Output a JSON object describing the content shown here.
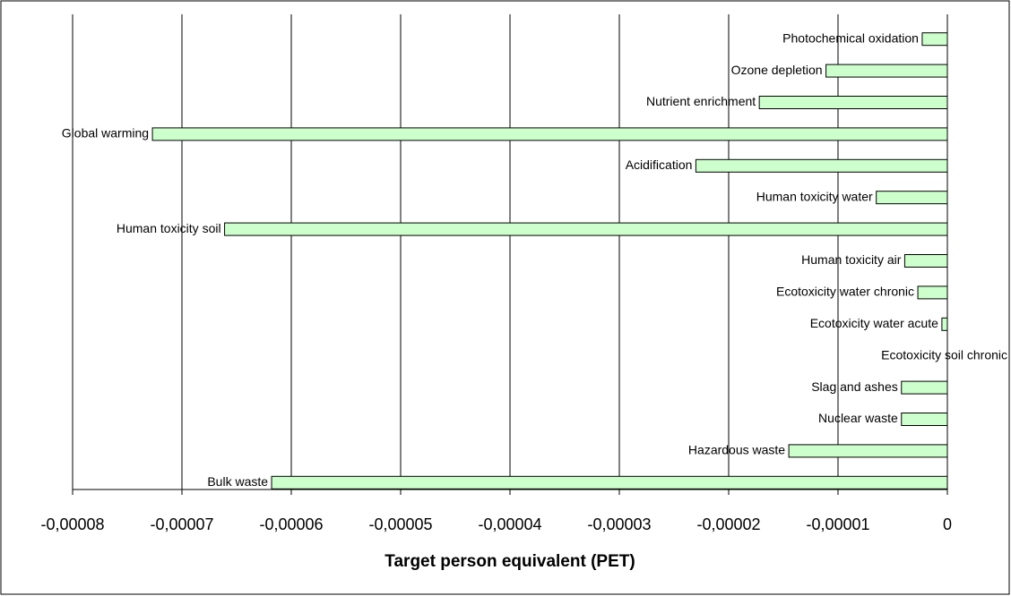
{
  "chart_data": {
    "type": "barh",
    "xlabel": "Target person equivalent (PET)",
    "categories": [
      "Photochemical oxidation",
      "Ozone depletion",
      "Nutrient enrichment",
      "Global warming",
      "Acidification",
      "Human toxicity water",
      "Human toxicity soil",
      "Human toxicity air",
      "Ecotoxicity water chronic",
      "Ecotoxicity water acute",
      "Ecotoxicity soil chronic",
      "Slag and ashes",
      "Nuclear waste",
      "Hazardous waste",
      "Bulk waste"
    ],
    "values": [
      -2.3e-06,
      -1.11e-05,
      -1.72e-05,
      -7.27e-05,
      -2.3e-05,
      -6.5e-06,
      -6.61e-05,
      -3.9e-06,
      -2.7e-06,
      -5e-07,
      0,
      -4.2e-06,
      -4.2e-06,
      -1.45e-05,
      -6.18e-05
    ],
    "color": "#ccffcc",
    "xlim": [
      -8e-05,
      0
    ],
    "xticks": [
      {
        "value": -8e-05,
        "label": "-0,00008"
      },
      {
        "value": -7e-05,
        "label": "-0,00007"
      },
      {
        "value": -6e-05,
        "label": "-0,00006"
      },
      {
        "value": -5e-05,
        "label": "-0,00005"
      },
      {
        "value": -4e-05,
        "label": "-0,00004"
      },
      {
        "value": -3e-05,
        "label": "-0,00003"
      },
      {
        "value": -2e-05,
        "label": "-0,00002"
      },
      {
        "value": -1e-05,
        "label": "-0,00001"
      },
      0
    ],
    "grid": true
  }
}
